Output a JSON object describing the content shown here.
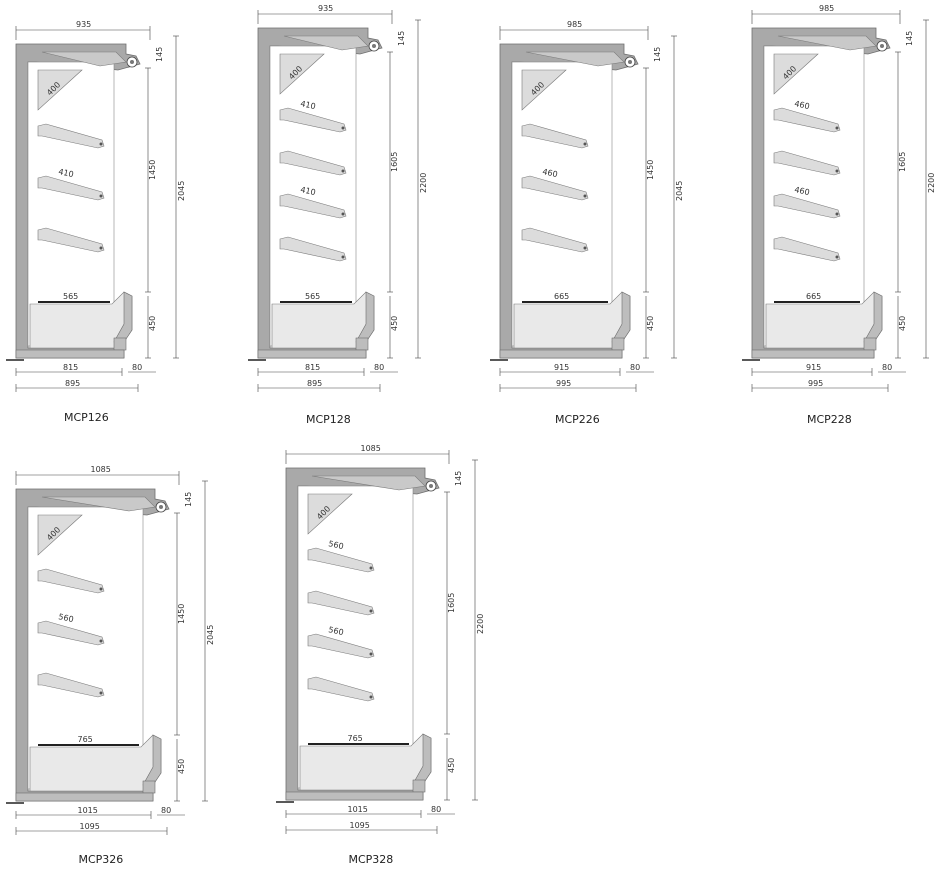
{
  "units": [
    {
      "id": "MCP126",
      "caption": "MCP126",
      "top_width": "935",
      "canopy": "145",
      "opening": "1450",
      "total_height": "2045",
      "base_height": "450",
      "shelf_labels": [
        "410"
      ],
      "top_shelf": "400",
      "deck": "565",
      "inner": "815",
      "outer": "895",
      "offset": "80",
      "shelves": 3
    },
    {
      "id": "MCP128",
      "caption": "MCP128",
      "top_width": "935",
      "canopy": "145",
      "opening": "1605",
      "total_height": "2200",
      "base_height": "450",
      "shelf_labels": [
        "410",
        "410"
      ],
      "top_shelf": "400",
      "deck": "565",
      "inner": "815",
      "outer": "895",
      "offset": "80",
      "shelves": 4
    },
    {
      "id": "MCP226",
      "caption": "MCP226",
      "top_width": "985",
      "canopy": "145",
      "opening": "1450",
      "total_height": "2045",
      "base_height": "450",
      "shelf_labels": [
        "460"
      ],
      "top_shelf": "400",
      "deck": "665",
      "inner": "915",
      "outer": "995",
      "offset": "80",
      "shelves": 3
    },
    {
      "id": "MCP228",
      "caption": "MCP228",
      "top_width": "985",
      "canopy": "145",
      "opening": "1605",
      "total_height": "2200",
      "base_height": "450",
      "shelf_labels": [
        "460",
        "460"
      ],
      "top_shelf": "400",
      "deck": "665",
      "inner": "915",
      "outer": "995",
      "offset": "80",
      "shelves": 4
    },
    {
      "id": "MCP326",
      "caption": "MCP326",
      "top_width": "1085",
      "canopy": "145",
      "opening": "1450",
      "total_height": "2045",
      "base_height": "450",
      "shelf_labels": [
        "560"
      ],
      "top_shelf": "400",
      "deck": "765",
      "inner": "1015",
      "outer": "1095",
      "offset": "80",
      "shelves": 3
    },
    {
      "id": "MCP328",
      "caption": "MCP328",
      "top_width": "1085",
      "canopy": "145",
      "opening": "1605",
      "total_height": "2200",
      "base_height": "450",
      "shelf_labels": [
        "560",
        "560"
      ],
      "top_shelf": "400",
      "deck": "765",
      "inner": "1015",
      "outer": "1095",
      "offset": "80",
      "shelves": 4
    }
  ]
}
